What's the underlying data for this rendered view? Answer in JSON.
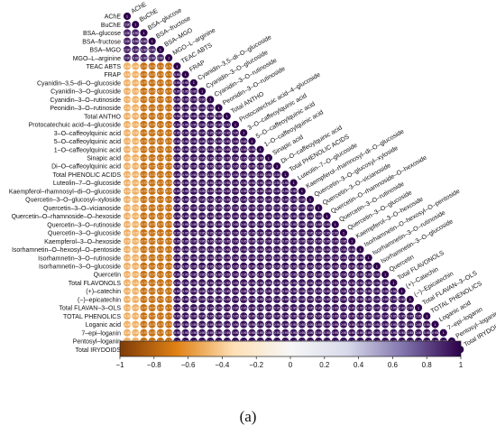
{
  "caption": "(a)",
  "chart_data": {
    "type": "heatmap",
    "shape": "lower-triangle correlogram (circles)",
    "variables": [
      "AChE",
      "BuChE",
      "BSA–glucose",
      "BSA–fructose",
      "BSA–MGO",
      "MGO–L–arginine",
      "TEAC ABTS",
      "FRAP",
      "Cyanidin–3,5–di–O–glucoside",
      "Cyanidin–3–O–glucoside",
      "Cyanidin–3–O–rutinoside",
      "Peonidin–3–O–rutinoside",
      "Total ANTHO",
      "Protocatechuic acid–4–glucoside",
      "3–O–caffeoylquinic acid",
      "5–O–caffeoylquinic acid",
      "1–O–caffeoylquinic acid",
      "Sinapic acid",
      "Di–O–caffeoylquinic acid",
      "Total PHENOLIC ACIDS",
      "Luteolin–7–O–glucoside",
      "Kaempferol–rhamnosyl–di–O–glucoside",
      "Quercetin–3–O–glucosyl–xyloside",
      "Quercetin–3–O–vicianoside",
      "Quercetin–O–rhamnoside–O–hexoside",
      "Quercetin–3–O–rutinoside",
      "Quercetin–3–O–glucoside",
      "Kaempferol–3–O–hexoside",
      "Isorhamnetin–O–hexosyl–O–pentoside",
      "Isorhamnetin–3–O–rutinoside",
      "Isorhamnetin–3–O–glucoside",
      "Quercetin",
      "Total FLAVONOLS",
      "(+)–catechin",
      "(−)–epicatechin",
      "Total FLAVAN–3–OLS",
      "TOTAL PHENOLICS",
      "Loganic acid",
      "7–epi–loganin",
      "Pentosyl–loganin",
      "Total IRYDOIDS"
    ],
    "diagonal_labels": [
      "AChE",
      "BuChE",
      "BSA–glucose",
      "BSA–fructose",
      "BSA–MGO",
      "MGO–L–arginine",
      "TEAC ABTS",
      "FRAP",
      "Cyanidin–3,5–di–O–glucoside",
      "Cyanidin–3–O–glucoside",
      "Cyanidin–3–O–rutinoside",
      "Peonidin–3–O–rutinoside",
      "Total ANTHO",
      "Protocatechuic acid–4–glucoside",
      "3–O–caffeoylquinic acid",
      "5–O–caffeoylquinic acid",
      "1–O–caffeoylquinic acid",
      "Sinapic acid",
      "Di–O–caffeoylquinic acid",
      "Total PHENOLIC ACIDS",
      "Luteolin–7–O–glucoside",
      "Kaempferol–rhamnosyl–di–O–glucoside",
      "Quercetin–3–O–glucosyl–xyloside",
      "Quercetin–3–O–vicianoside",
      "Quercetin–O–rhamnoside–O–hexoside",
      "Quercetin–3–O–rutinoside",
      "Quercetin–3–O–glucoside",
      "Kaempferol–3–O–hexoside",
      "Isorhamnetin–O–hexosyl–O–pentoside",
      "Isorhamnetin–3–O–rutinoside",
      "Isorhamnetin–3–O–glucoside",
      "Quercetin",
      "Total FLAVONOLS",
      "(+)–Catechin",
      "(−)–Epicatechin",
      "Total FLAVAN–3–OLS",
      "TOTAL PHENOLICS",
      "Loganic acid",
      "7–epi–loganin",
      "Pentosyl–loganin",
      "Total IRYDOIDS"
    ],
    "block_values": {
      "description": "approximate correlation coefficient by variable group",
      "groups": [
        {
          "range": [
            0,
            1
          ],
          "value_with_rest": -0.5,
          "within": 1
        },
        {
          "range": [
            2,
            5
          ],
          "value_with_bioassays": 0.9,
          "value_with_rest": -0.75,
          "within": 0.9
        },
        {
          "range": [
            6,
            40
          ],
          "within": 0.95
        }
      ]
    },
    "colorbar": {
      "min": -1,
      "max": 1,
      "ticks": [
        -1,
        -0.8,
        -0.6,
        -0.4,
        -0.2,
        0,
        0.2,
        0.4,
        0.6,
        0.8,
        1
      ],
      "tick_labels": [
        "−1",
        "−0.8",
        "−0.6",
        "−0.4",
        "−0.2",
        "0",
        "0.2",
        "0.4",
        "0.6",
        "0.8",
        "1"
      ],
      "colors": [
        "#7f3b08",
        "#e08214",
        "#fee0b6",
        "#f7f7f7",
        "#d8daeb",
        "#8073ac",
        "#2d004b"
      ]
    },
    "cell_label_color": "#ffffff",
    "grid": false,
    "legend": "bottom colorbar"
  }
}
